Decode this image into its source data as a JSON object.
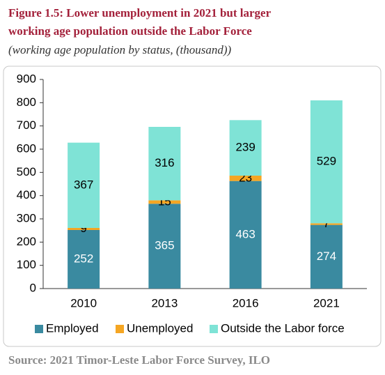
{
  "chart_data": {
    "type": "stacked-bar",
    "title": "Figure 1.5: Lower unemployment in 2021 but larger",
    "title_line2": "working age population outside the Labor Force",
    "subtitle": "(working age population by status, (thousand))",
    "source": "Source: 2021 Timor-Leste Labor Force Survey, ILO",
    "categories": [
      "2010",
      "2013",
      "2016",
      "2021"
    ],
    "series": [
      {
        "name": "Employed",
        "color": "#3a8aa0",
        "label_color": "#ffffff",
        "values": [
          252,
          365,
          463,
          274
        ]
      },
      {
        "name": "Unemployed",
        "color": "#f5a623",
        "label_color": "#000000",
        "values": [
          9,
          15,
          23,
          7
        ]
      },
      {
        "name": "Outside the Labor force",
        "color": "#7fe3d6",
        "label_color": "#000000",
        "values": [
          367,
          316,
          239,
          529
        ]
      }
    ],
    "ylim": [
      0,
      900
    ],
    "yticks": [
      0,
      100,
      200,
      300,
      400,
      500,
      600,
      700,
      800,
      900
    ],
    "legend": "bottom"
  }
}
